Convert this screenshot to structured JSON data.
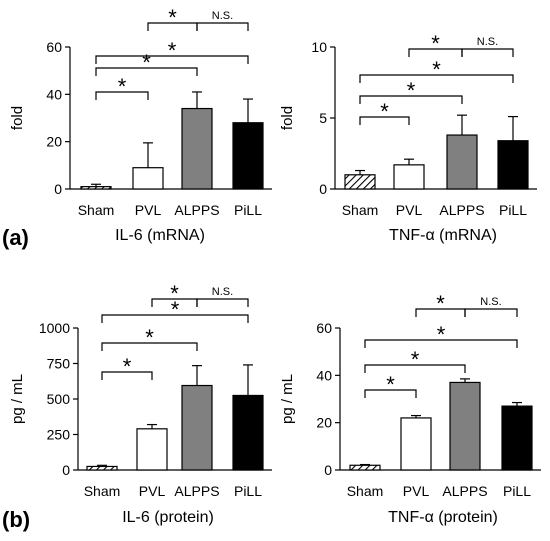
{
  "panel_labels": [
    "(a)",
    "(b)"
  ],
  "chart_data": [
    {
      "type": "bar",
      "title": "IL-6 (mRNA)",
      "ylabel": "fold",
      "categories": [
        "Sham",
        "PVL",
        "ALPPS",
        "PiLL"
      ],
      "values": [
        1,
        9,
        34,
        28
      ],
      "errors": [
        1,
        10.5,
        7,
        10
      ],
      "ylim": [
        0,
        60
      ],
      "yticks": [
        "0",
        "20",
        "40",
        "60"
      ],
      "brackets": [
        {
          "from": 0,
          "to": 1,
          "label": "*"
        },
        {
          "from": 0,
          "to": 2,
          "label": "*"
        },
        {
          "from": 0,
          "to": 3,
          "label": "*"
        },
        {
          "from": 1,
          "to": 2,
          "label": "*"
        },
        {
          "from": 2,
          "to": 3,
          "label": "N.S."
        }
      ]
    },
    {
      "type": "bar",
      "title": "TNF-α (mRNA)",
      "ylabel": "fold",
      "categories": [
        "Sham",
        "PVL",
        "ALPPS",
        "PiLL"
      ],
      "values": [
        1,
        1.7,
        3.8,
        3.4
      ],
      "errors": [
        0.3,
        0.4,
        1.4,
        1.7
      ],
      "ylim": [
        0,
        10
      ],
      "yticks": [
        "0",
        "5",
        "10"
      ],
      "brackets": [
        {
          "from": 0,
          "to": 1,
          "label": "*"
        },
        {
          "from": 0,
          "to": 2,
          "label": "*"
        },
        {
          "from": 0,
          "to": 3,
          "label": "*"
        },
        {
          "from": 1,
          "to": 2,
          "label": "*"
        },
        {
          "from": 2,
          "to": 3,
          "label": "N.S."
        }
      ]
    },
    {
      "type": "bar",
      "title": "IL-6 (protein)",
      "ylabel": "pg / mL",
      "categories": [
        "Sham",
        "PVL",
        "ALPPS",
        "PiLL"
      ],
      "values": [
        25,
        290,
        595,
        525
      ],
      "errors": [
        8,
        30,
        140,
        215
      ],
      "ylim": [
        0,
        1000
      ],
      "yticks": [
        "0",
        "250",
        "500",
        "750",
        "1000"
      ],
      "brackets": [
        {
          "from": 0,
          "to": 1,
          "label": "*"
        },
        {
          "from": 0,
          "to": 2,
          "label": "*"
        },
        {
          "from": 0,
          "to": 3,
          "label": "*"
        },
        {
          "from": 1,
          "to": 2,
          "label": "*"
        },
        {
          "from": 2,
          "to": 3,
          "label": "N.S."
        }
      ]
    },
    {
      "type": "bar",
      "title": "TNF-α (protein)",
      "ylabel": "pg / mL",
      "categories": [
        "Sham",
        "PVL",
        "ALPPS",
        "PiLL"
      ],
      "values": [
        2,
        22,
        37,
        27
      ],
      "errors": [
        0.3,
        1,
        1.5,
        1.5
      ],
      "ylim": [
        0,
        60
      ],
      "yticks": [
        "0",
        "20",
        "40",
        "60"
      ],
      "brackets": [
        {
          "from": 0,
          "to": 1,
          "label": "*"
        },
        {
          "from": 0,
          "to": 2,
          "label": "*"
        },
        {
          "from": 0,
          "to": 3,
          "label": "*"
        },
        {
          "from": 1,
          "to": 2,
          "label": "*"
        },
        {
          "from": 2,
          "to": 3,
          "label": "N.S."
        }
      ]
    }
  ]
}
